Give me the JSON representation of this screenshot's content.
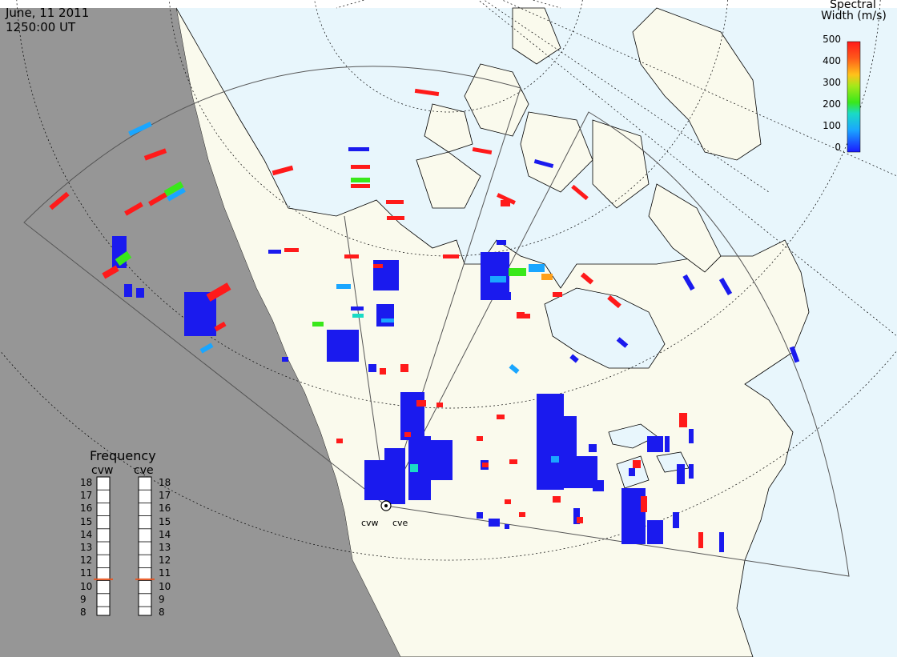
{
  "header": {
    "date": "June, 11 2011",
    "time": "1250:00 UT"
  },
  "legend": {
    "title_line1": "Spectral",
    "title_line2": "Width (m/s)",
    "ticks": [
      "500",
      "400",
      "300",
      "200",
      "100",
      "0"
    ]
  },
  "frequency_panel": {
    "title": "Frequency",
    "columns": [
      "cvw",
      "cve"
    ],
    "scale": [
      "18",
      "17",
      "16",
      "15",
      "14",
      "13",
      "12",
      "11",
      "10",
      "9",
      "8"
    ],
    "cvw_value_mhz": 10.6,
    "cve_value_mhz": 10.6,
    "marker_color": "#e8541f"
  },
  "radars": {
    "west_label": "cvw",
    "east_label": "cve"
  },
  "colors": {
    "night": "#969696",
    "land": "#fafaed",
    "ocean": "#e8f6fc",
    "grid": "#000000"
  }
}
